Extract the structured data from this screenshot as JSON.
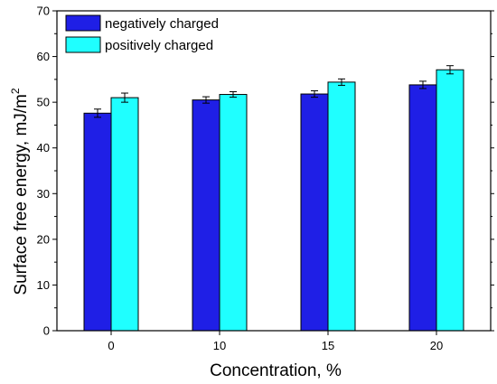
{
  "chart_data": {
    "type": "bar",
    "categories": [
      "0",
      "10",
      "15",
      "20"
    ],
    "series": [
      {
        "name": "negatively charged",
        "color": "#1f1fe6",
        "values": [
          47.6,
          50.5,
          51.8,
          53.8
        ],
        "errors": [
          0.9,
          0.7,
          0.7,
          0.8
        ]
      },
      {
        "name": "positively charged",
        "color": "#1fffff",
        "values": [
          51.0,
          51.7,
          54.4,
          57.1
        ],
        "errors": [
          1.0,
          0.6,
          0.7,
          0.9
        ]
      }
    ],
    "xlabel": "Concentration, %",
    "ylabel": "Surface free energy, mJ/m",
    "ylabel_superscript": "2",
    "ylim": [
      0,
      70
    ],
    "yticks": [
      0,
      10,
      20,
      30,
      40,
      50,
      60,
      70
    ],
    "grid": false,
    "legend_position": "top-left"
  }
}
